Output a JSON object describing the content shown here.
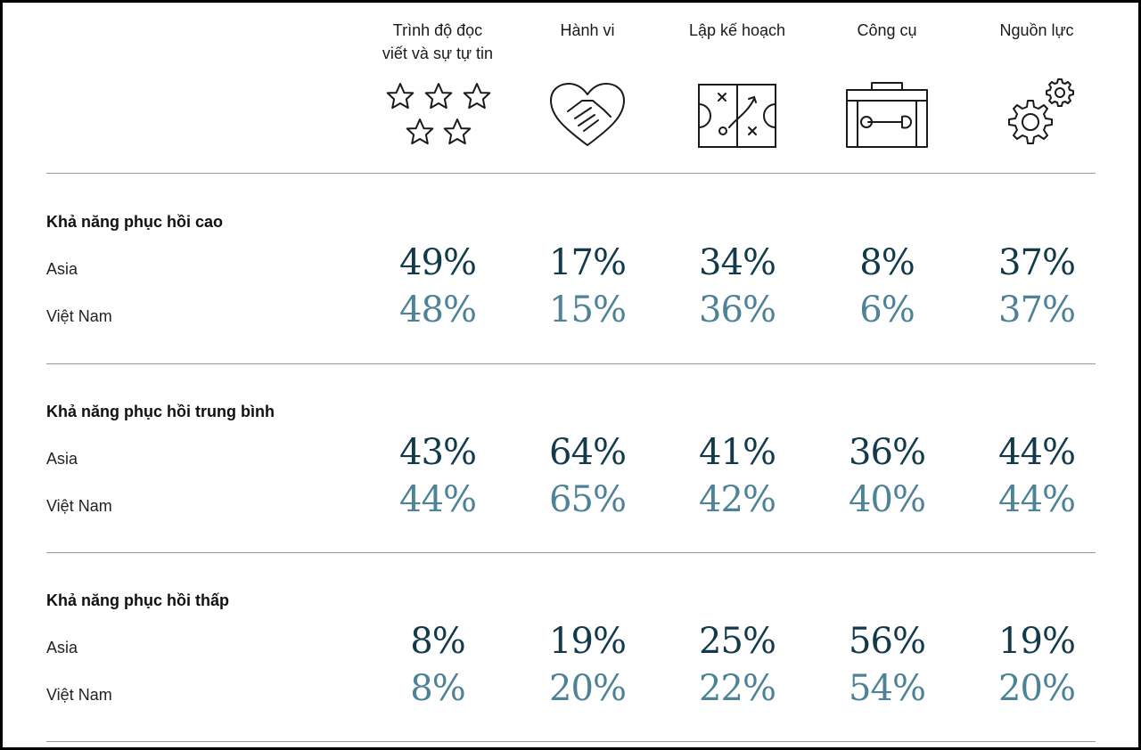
{
  "columns": [
    {
      "label": "Trình độ đọc\nviết và sự tự tin",
      "icon": "stars-icon"
    },
    {
      "label": "Hành vi",
      "icon": "heart-handshake-icon"
    },
    {
      "label": "Lập kế hoạch",
      "icon": "strategy-board-icon"
    },
    {
      "label": "Công cụ",
      "icon": "toolbox-icon"
    },
    {
      "label": "Nguồn lực",
      "icon": "gears-icon"
    }
  ],
  "colors": {
    "asia": "#123a4a",
    "vietnam": "#4d8297",
    "rule": "#9a9a9a"
  },
  "chart_data": {
    "type": "table",
    "columns": [
      "Trình độ đọc viết và sự tự tin",
      "Hành vi",
      "Lập kế hoạch",
      "Công cụ",
      "Nguồn lực"
    ],
    "groups": [
      {
        "title": "Khả năng phục hồi cao",
        "rows": [
          {
            "label": "Asia",
            "values": [
              "49%",
              "17%",
              "34%",
              "8%",
              "37%"
            ]
          },
          {
            "label": "Việt Nam",
            "values": [
              "48%",
              "15%",
              "36%",
              "6%",
              "37%"
            ]
          }
        ]
      },
      {
        "title": "Khả năng phục hồi trung bình",
        "rows": [
          {
            "label": "Asia",
            "values": [
              "43%",
              "64%",
              "41%",
              "36%",
              "44%"
            ]
          },
          {
            "label": "Việt Nam",
            "values": [
              "44%",
              "65%",
              "42%",
              "40%",
              "44%"
            ]
          }
        ]
      },
      {
        "title": "Khả năng phục hồi thấp",
        "rows": [
          {
            "label": "Asia",
            "values": [
              "8%",
              "19%",
              "25%",
              "56%",
              "19%"
            ]
          },
          {
            "label": "Việt Nam",
            "values": [
              "8%",
              "20%",
              "22%",
              "54%",
              "20%"
            ]
          }
        ]
      }
    ]
  }
}
